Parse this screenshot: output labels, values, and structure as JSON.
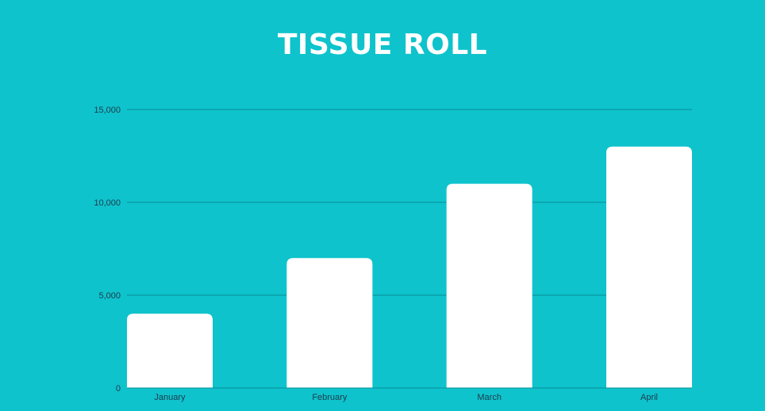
{
  "title": "TISSUE ROLL",
  "colors": {
    "background": "#0EC3CC",
    "bar": "#FFFFFF",
    "gridline": "#0A8E97",
    "axis_text": "#1F3B4D"
  },
  "chart_data": {
    "type": "bar",
    "title": "TISSUE ROLL",
    "categories": [
      "January",
      "February",
      "March",
      "April"
    ],
    "values": [
      4000,
      7000,
      11000,
      13000
    ],
    "ylim": [
      0,
      15000
    ],
    "yticks": [
      0,
      5000,
      10000,
      15000
    ],
    "ytick_labels": [
      "0",
      "5,000",
      "10,000",
      "15,000"
    ],
    "xlabel": "",
    "ylabel": "",
    "grid": true,
    "legend": "none"
  }
}
